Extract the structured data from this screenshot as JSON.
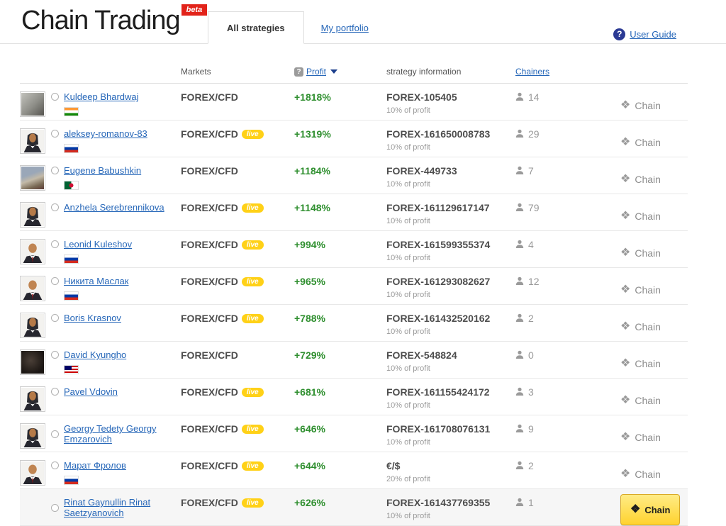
{
  "page": {
    "title": "Chain Trading",
    "beta_badge": "beta",
    "tabs": [
      {
        "label": "All strategies",
        "active": true
      },
      {
        "label": "My portfolio",
        "active": false
      }
    ],
    "user_guide": {
      "label": "User Guide",
      "icon": "question-circle-icon"
    }
  },
  "table": {
    "columns": {
      "markets": "Markets",
      "profit": "Profit",
      "strategy": "strategy information",
      "chainers": "Chainers"
    },
    "icons": {
      "profit_help": "question-square-icon",
      "profit_sort": "caret-down-icon",
      "chainers": "person-icon",
      "chain": "chain-links-icon",
      "chain_glyph": "❖"
    },
    "live_label": "live",
    "chain_label": "Chain",
    "rows": [
      {
        "name": "Kuldeep Bhardwaj",
        "avatar": "photo-office",
        "flag": "india",
        "markets": "FOREX/CFD",
        "live": false,
        "profit": "+1818%",
        "strategy": "FOREX-105405",
        "strategy_sub": "10% of profit",
        "chainers": "14",
        "chain_style": "link",
        "highlighted": false
      },
      {
        "name": "aleksey-romanov-83",
        "avatar": "female",
        "flag": "russia",
        "markets": "FOREX/CFD",
        "live": true,
        "profit": "+1319%",
        "strategy": "FOREX-161650008783",
        "strategy_sub": "10% of profit",
        "chainers": "29",
        "chain_style": "link",
        "highlighted": false
      },
      {
        "name": "Eugene Babushkin",
        "avatar": "photo-city",
        "flag": "algeria",
        "markets": "FOREX/CFD",
        "live": false,
        "profit": "+1184%",
        "strategy": "FOREX-449733",
        "strategy_sub": "10% of profit",
        "chainers": "7",
        "chain_style": "link",
        "highlighted": false
      },
      {
        "name": "Anzhela Serebrennikova",
        "avatar": "female",
        "flag": null,
        "markets": "FOREX/CFD",
        "live": true,
        "profit": "+1148%",
        "strategy": "FOREX-161129617147",
        "strategy_sub": "10% of profit",
        "chainers": "79",
        "chain_style": "link",
        "highlighted": false
      },
      {
        "name": "Leonid Kuleshov",
        "avatar": "male",
        "flag": "russia",
        "markets": "FOREX/CFD",
        "live": true,
        "profit": "+994%",
        "strategy": "FOREX-161599355374",
        "strategy_sub": "10% of profit",
        "chainers": "4",
        "chain_style": "link",
        "highlighted": false
      },
      {
        "name": "Никита Маслак",
        "avatar": "male",
        "flag": "russia",
        "markets": "FOREX/CFD",
        "live": true,
        "profit": "+965%",
        "strategy": "FOREX-161293082627",
        "strategy_sub": "10% of profit",
        "chainers": "12",
        "chain_style": "link",
        "highlighted": false
      },
      {
        "name": "Boris Krasnov",
        "avatar": "female",
        "flag": null,
        "markets": "FOREX/CFD",
        "live": true,
        "profit": "+788%",
        "strategy": "FOREX-161432520162",
        "strategy_sub": "10% of profit",
        "chainers": "2",
        "chain_style": "link",
        "highlighted": false
      },
      {
        "name": "David Kyungho",
        "avatar": "photo-dark",
        "flag": "malaysia",
        "markets": "FOREX/CFD",
        "live": false,
        "profit": "+729%",
        "strategy": "FOREX-548824",
        "strategy_sub": "10% of profit",
        "chainers": "0",
        "chain_style": "link",
        "highlighted": false
      },
      {
        "name": "Pavel Vdovin",
        "avatar": "female",
        "flag": null,
        "markets": "FOREX/CFD",
        "live": true,
        "profit": "+681%",
        "strategy": "FOREX-161155424172",
        "strategy_sub": "10% of profit",
        "chainers": "3",
        "chain_style": "link",
        "highlighted": false
      },
      {
        "name": "Georgy Tedety Georgy Emzarovich",
        "avatar": "female",
        "flag": null,
        "markets": "FOREX/CFD",
        "live": true,
        "profit": "+646%",
        "strategy": "FOREX-161708076131",
        "strategy_sub": "10% of profit",
        "chainers": "9",
        "chain_style": "link",
        "highlighted": false
      },
      {
        "name": "Марат Фролов",
        "avatar": "male",
        "flag": "russia",
        "markets": "FOREX/CFD",
        "live": true,
        "profit": "+644%",
        "strategy": "€/$",
        "strategy_sub": "20% of profit",
        "chainers": "2",
        "chain_style": "link",
        "highlighted": false
      },
      {
        "name": "Rinat Gaynullin Rinat Saetzyanovich",
        "avatar": null,
        "flag": null,
        "markets": "FOREX/CFD",
        "live": true,
        "profit": "+626%",
        "strategy": "FOREX-161437769355",
        "strategy_sub": "10% of profit",
        "chainers": "1",
        "chain_style": "button",
        "highlighted": true
      }
    ]
  },
  "colors": {
    "profit_green": "#2f8f2f",
    "link_blue": "#2566b8",
    "live_yellow": "#ffd117",
    "beta_red": "#e2231a",
    "chain_button_yellow": "#ffd22e"
  }
}
